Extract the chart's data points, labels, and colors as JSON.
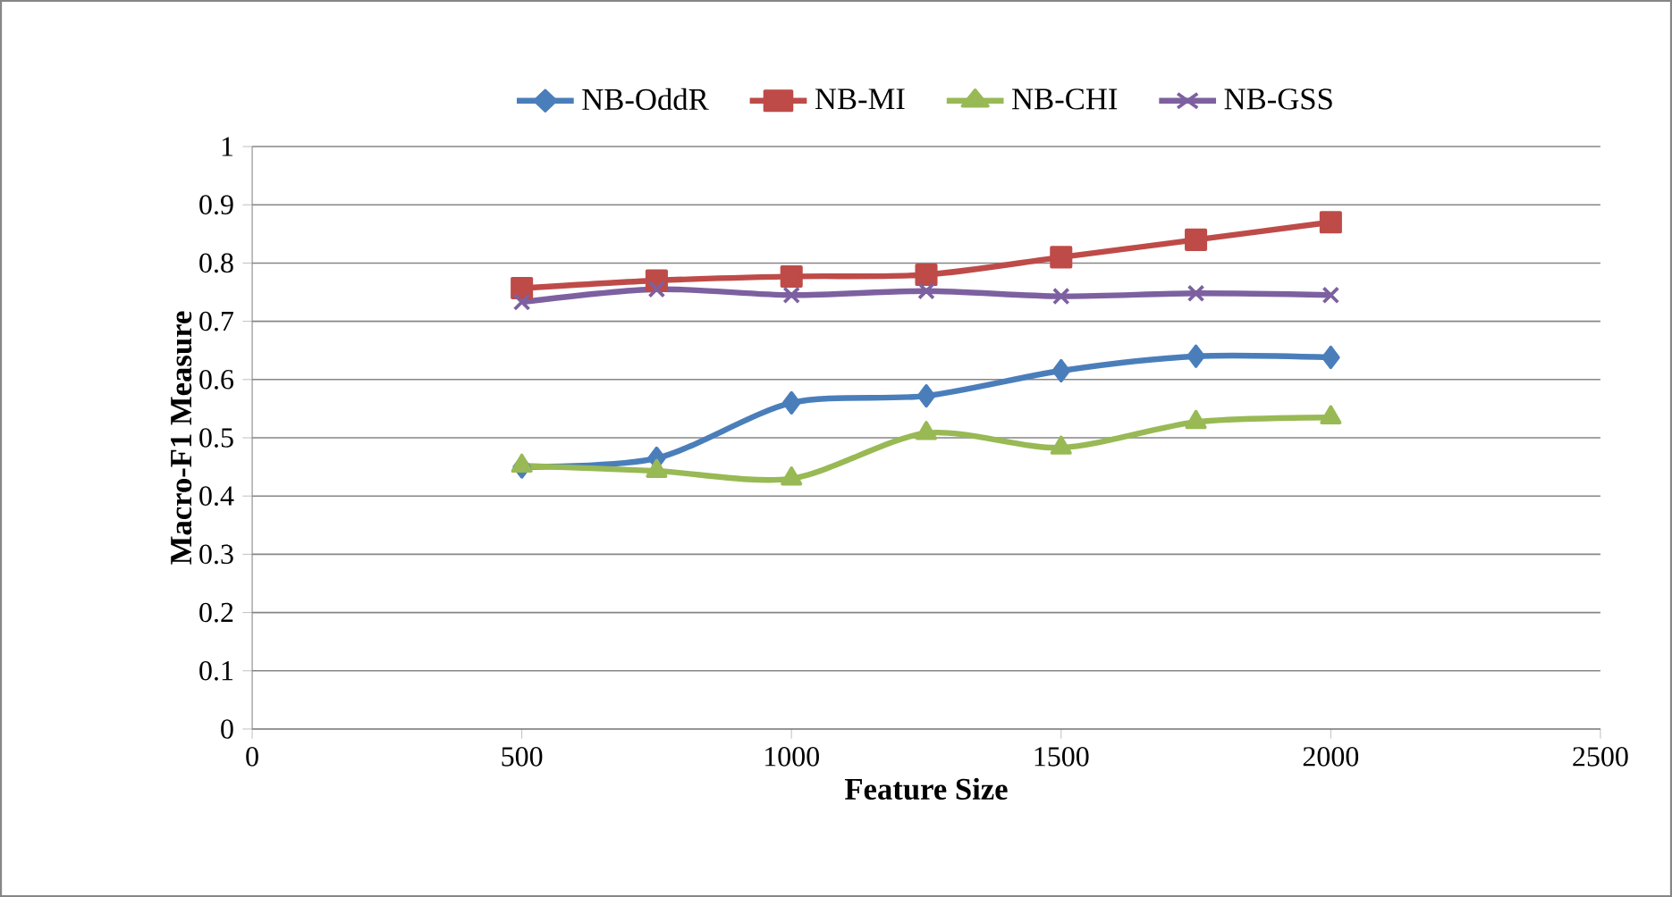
{
  "chart_data": {
    "type": "line",
    "xlabel": "Feature Size",
    "ylabel": "Macro-F1 Measure",
    "x": [
      500,
      750,
      1000,
      1250,
      1500,
      1750,
      2000
    ],
    "series": [
      {
        "name": "NB-OddR",
        "color": "#4a7ebb",
        "marker": "diamond",
        "values": [
          0.45,
          0.465,
          0.56,
          0.572,
          0.615,
          0.64,
          0.638
        ]
      },
      {
        "name": "NB-MI",
        "color": "#be4b48",
        "marker": "square",
        "values": [
          0.757,
          0.77,
          0.777,
          0.78,
          0.81,
          0.84,
          0.87
        ]
      },
      {
        "name": "NB-CHI",
        "color": "#98b954",
        "marker": "triangle",
        "values": [
          0.452,
          0.443,
          0.43,
          0.508,
          0.483,
          0.527,
          0.535
        ]
      },
      {
        "name": "NB-GSS",
        "color": "#7d60a0",
        "marker": "cross",
        "values": [
          0.733,
          0.755,
          0.745,
          0.752,
          0.743,
          0.748,
          0.745
        ]
      }
    ],
    "xlim": [
      0,
      2500
    ],
    "xticks": [
      0,
      500,
      1000,
      1500,
      2000,
      2500
    ],
    "ylim": [
      0,
      1
    ],
    "yticks": [
      0,
      0.1,
      0.2,
      0.3,
      0.4,
      0.5,
      0.6,
      0.7,
      0.8,
      0.9,
      1
    ],
    "grid": "y",
    "legend": "top",
    "line_style": "solid"
  }
}
